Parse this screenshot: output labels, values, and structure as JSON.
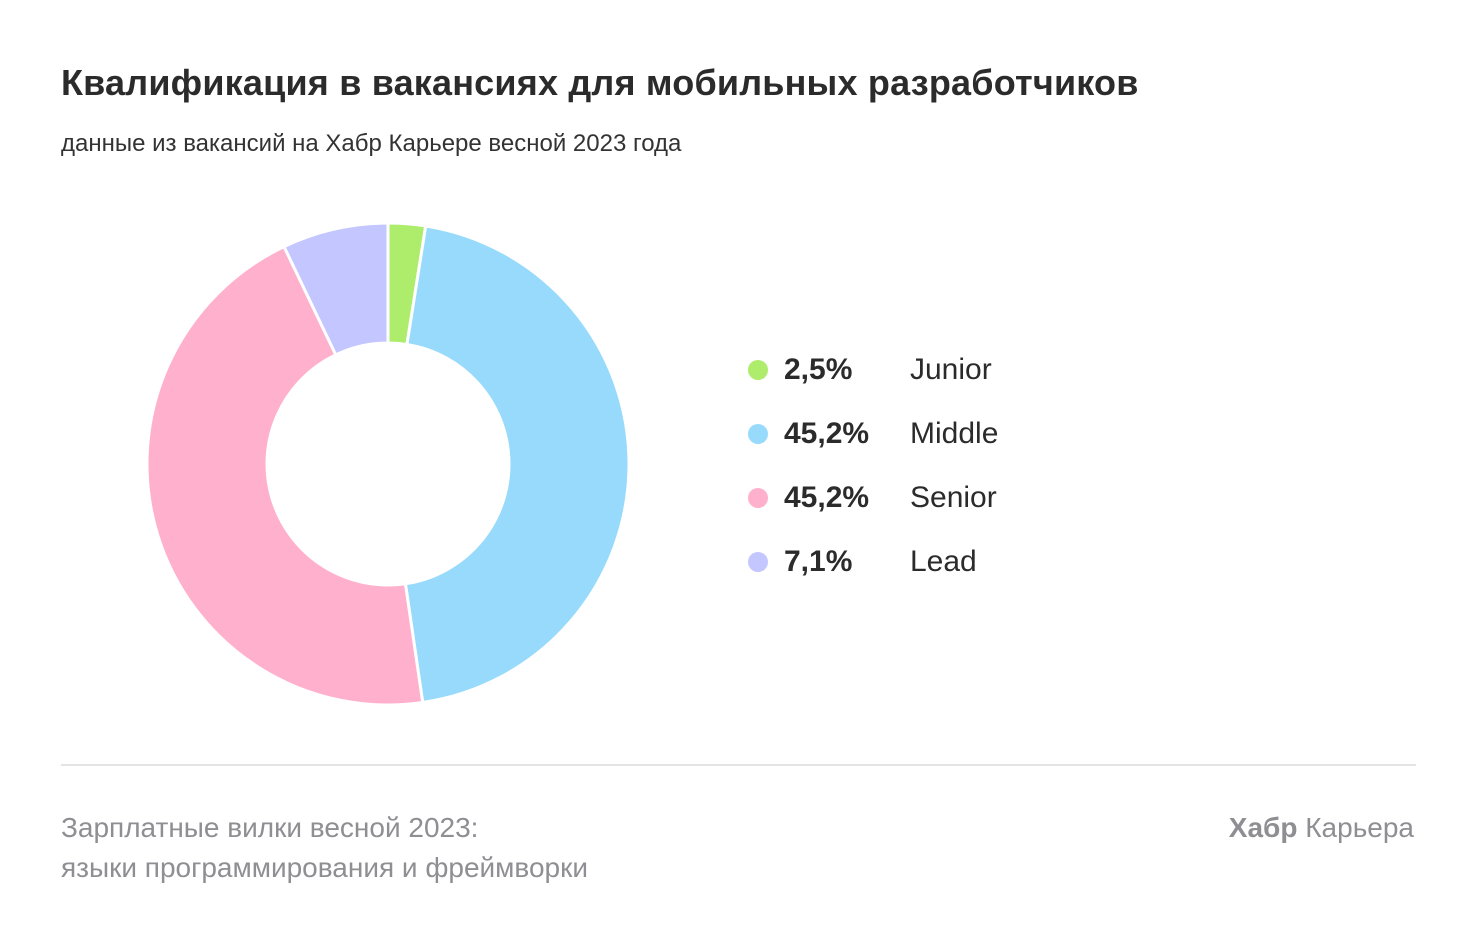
{
  "header": {
    "title": "Квалификация в вакансиях для мобильных разработчиков",
    "subtitle": "данные из вакансий на Хабр Карьере весной 2023 года"
  },
  "chart_data": {
    "type": "pie",
    "variant": "donut",
    "title": "Квалификация в вакансиях для мобильных разработчиков",
    "subtitle": "данные из вакансий на Хабр Карьере весной 2023 года",
    "categories": [
      "Junior",
      "Middle",
      "Senior",
      "Lead"
    ],
    "values": [
      2.5,
      45.2,
      45.2,
      7.1
    ],
    "value_labels": [
      "2,5%",
      "45,2%",
      "45,2%",
      "7,1%"
    ],
    "colors": [
      "#aeec6c",
      "#98dafc",
      "#ffb0cc",
      "#c3c6ff"
    ],
    "legend_placement": "right"
  },
  "footer": {
    "caption_line1": "Зарплатные вилки весной 2023:",
    "caption_line2": "языки программирования и фреймворки",
    "brand_bold": "Хабр",
    "brand_regular": "Карьера"
  }
}
